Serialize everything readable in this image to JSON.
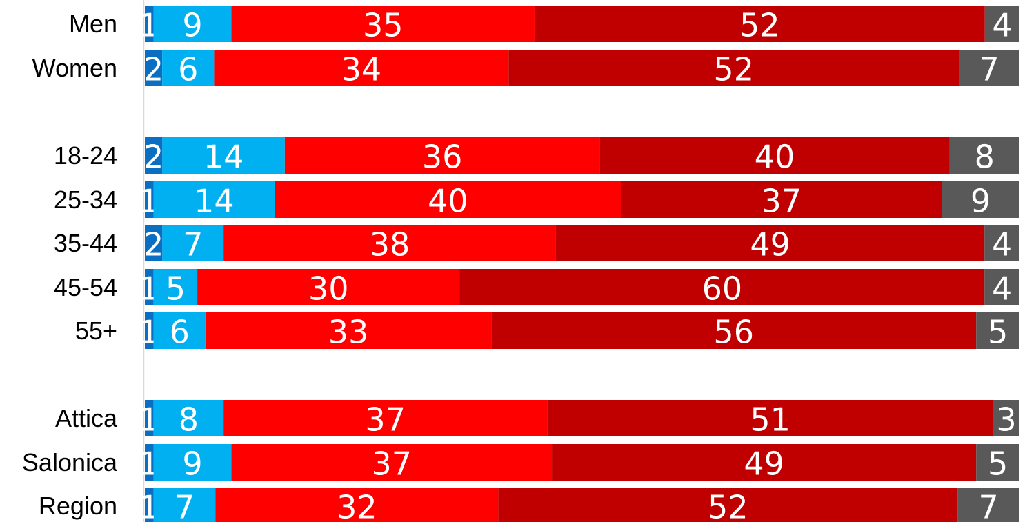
{
  "chart_data": {
    "type": "bar",
    "orientation": "horizontal",
    "stacked": true,
    "normalized": true,
    "categories": [
      "Men",
      "Women",
      "18-24",
      "25-34",
      "35-44",
      "45-54",
      "55+",
      "Attica",
      "Salonica",
      "Region"
    ],
    "groups": [
      [
        "Men",
        "Women"
      ],
      [
        "18-24",
        "25-34",
        "35-44",
        "45-54",
        "55+"
      ],
      [
        "Attica",
        "Salonica",
        "Region"
      ]
    ],
    "series": [
      {
        "color": "#0a6fc2",
        "values": [
          1,
          2,
          2,
          1,
          2,
          1,
          1,
          1,
          1,
          1
        ]
      },
      {
        "color": "#00b0f0",
        "values": [
          9,
          6,
          14,
          14,
          7,
          5,
          6,
          8,
          9,
          7
        ]
      },
      {
        "color": "#ff0000",
        "values": [
          35,
          34,
          36,
          40,
          38,
          30,
          33,
          37,
          37,
          32
        ]
      },
      {
        "color": "#c00000",
        "values": [
          52,
          52,
          40,
          37,
          49,
          60,
          56,
          51,
          49,
          52
        ]
      },
      {
        "color": "#595959",
        "values": [
          4,
          7,
          8,
          9,
          4,
          4,
          5,
          3,
          5,
          7
        ]
      }
    ],
    "title": "",
    "xlabel": "",
    "ylabel": "",
    "legend": "none",
    "grid": false,
    "axis_color": "#d9d9d9",
    "label_color": "#ffffff"
  }
}
